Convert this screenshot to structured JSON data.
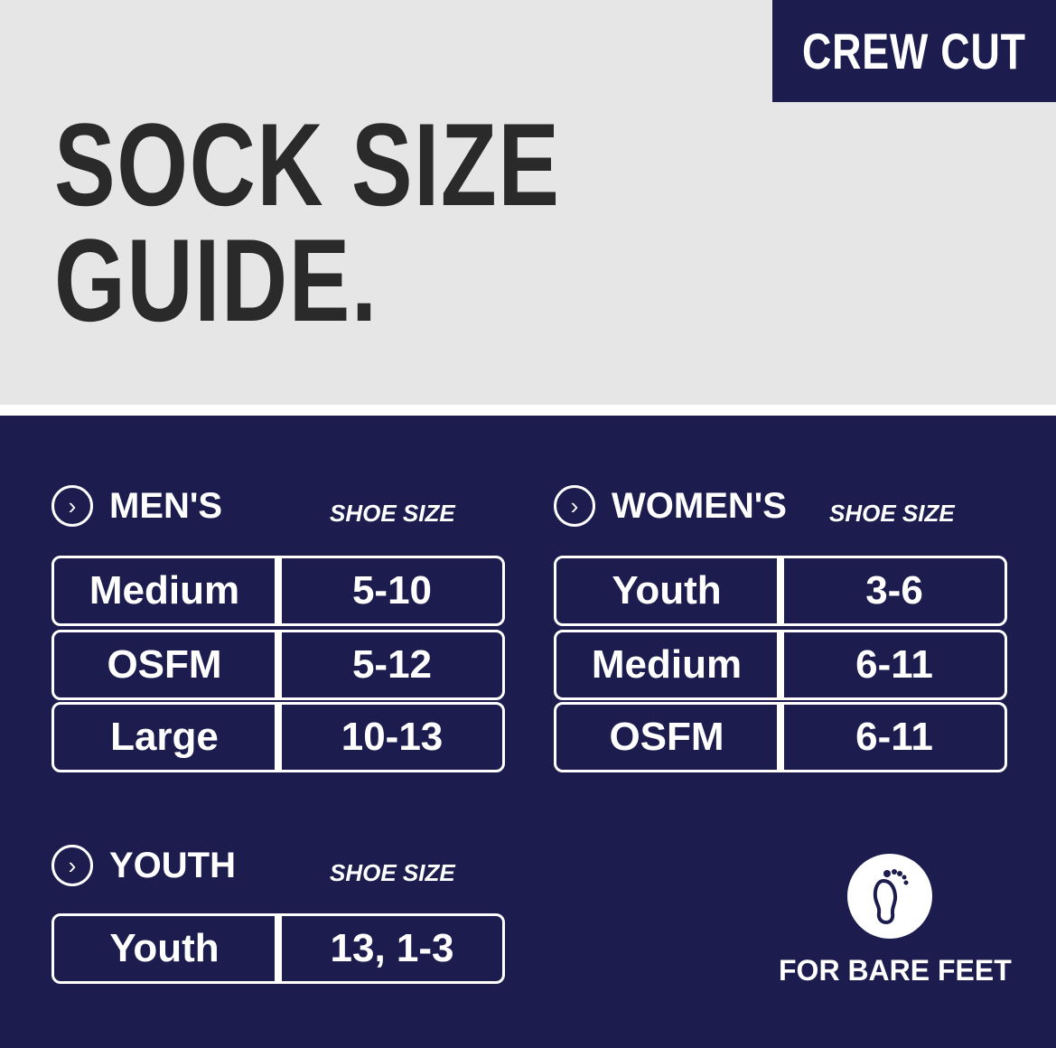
{
  "badge": "CREW CUT",
  "title": [
    "SOCK SIZE",
    "GUIDE."
  ],
  "shoe_size_label": "SHOE SIZE",
  "sections": [
    {
      "name": "MEN'S",
      "rows": [
        {
          "size": "Medium",
          "shoe": "5-10"
        },
        {
          "size": "OSFM",
          "shoe": "5-12"
        },
        {
          "size": "Large",
          "shoe": "10-13"
        }
      ]
    },
    {
      "name": "WOMEN'S",
      "rows": [
        {
          "size": "Youth",
          "shoe": "3-6"
        },
        {
          "size": "Medium",
          "shoe": "6-11"
        },
        {
          "size": "OSFM",
          "shoe": "6-11"
        }
      ]
    },
    {
      "name": "YOUTH",
      "rows": [
        {
          "size": "Youth",
          "shoe": "13, 1-3"
        }
      ]
    }
  ],
  "bare_feet": "FOR BARE FEET",
  "colors": {
    "navy": "#1c1d4e",
    "grey": "#e6e6e6"
  }
}
